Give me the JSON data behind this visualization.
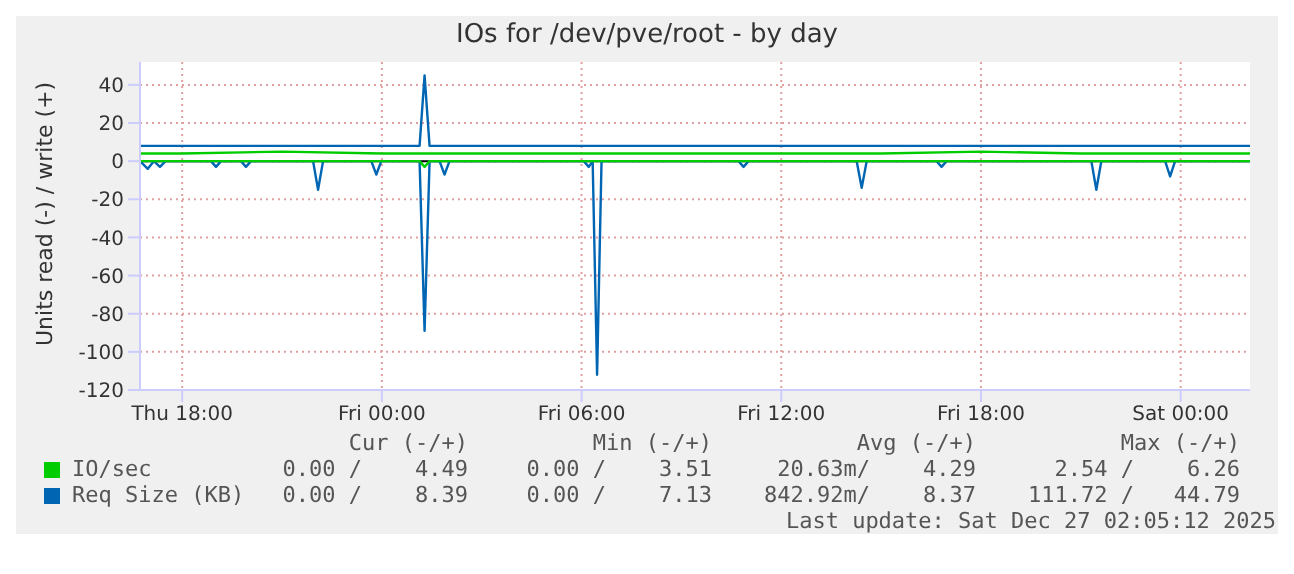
{
  "chart_data": {
    "type": "line",
    "title": "IOs for /dev/pve/root - by day",
    "ylabel": "Units read (-) / write (+)",
    "xlim": [
      "2025-12-25T16:44",
      "2025-12-27T02:05"
    ],
    "xticks": [
      {
        "value": "2025-12-25T18:00",
        "label": "Thu 18:00"
      },
      {
        "value": "2025-12-26T00:00",
        "label": "Fri 00:00"
      },
      {
        "value": "2025-12-26T06:00",
        "label": "Fri 06:00"
      },
      {
        "value": "2025-12-26T12:00",
        "label": "Fri 12:00"
      },
      {
        "value": "2025-12-26T18:00",
        "label": "Fri 18:00"
      },
      {
        "value": "2025-12-27T00:00",
        "label": "Sat 00:00"
      }
    ],
    "ylim": [
      -120,
      52
    ],
    "yticks": [
      -120,
      -100,
      -80,
      -60,
      -40,
      -20,
      0,
      20,
      40
    ],
    "grid": true,
    "legend": "bottom left",
    "marker": "none",
    "line_style": "solid",
    "ref_lines": [
      {
        "axis": "y",
        "value": 0,
        "color": "#000000"
      }
    ],
    "series": [
      {
        "color": "#00cc00",
        "x": [
          "2025-12-25T16:44",
          "2025-12-26T01:08",
          "2025-12-26T01:17",
          "2025-12-26T01:26",
          "2025-12-27T02:05"
        ],
        "values": [
          0,
          0,
          -3,
          0,
          0
        ]
      },
      {
        "color": "#0066b3",
        "x": [
          "2025-12-25T16:44",
          "2025-12-25T16:58",
          "2025-12-25T17:09",
          "2025-12-25T17:20",
          "2025-12-25T17:30",
          "2025-12-25T18:52",
          "2025-12-25T19:01",
          "2025-12-25T19:10",
          "2025-12-25T19:46",
          "2025-12-25T19:55",
          "2025-12-25T20:04",
          "2025-12-25T21:56",
          "2025-12-25T22:05",
          "2025-12-25T22:14",
          "2025-12-25T23:41",
          "2025-12-25T23:50",
          "2025-12-25T23:59",
          "2025-12-26T01:08",
          "2025-12-26T01:17",
          "2025-12-26T01:26",
          "2025-12-26T01:44",
          "2025-12-26T01:53",
          "2025-12-26T02:02",
          "2025-12-26T06:04",
          "2025-12-26T06:13",
          "2025-12-26T06:20",
          "2025-12-26T06:28",
          "2025-12-26T06:36",
          "2025-12-26T10:43",
          "2025-12-26T10:52",
          "2025-12-26T11:01",
          "2025-12-26T14:16",
          "2025-12-26T14:25",
          "2025-12-26T14:34",
          "2025-12-26T16:40",
          "2025-12-26T16:49",
          "2025-12-26T16:58",
          "2025-12-26T21:19",
          "2025-12-26T21:28",
          "2025-12-26T21:37",
          "2025-12-26T23:32",
          "2025-12-26T23:41",
          "2025-12-26T23:50",
          "2025-12-27T02:05"
        ],
        "values": [
          0,
          -4,
          0,
          -3,
          0,
          0,
          -3,
          0,
          0,
          -3,
          0,
          0,
          -15,
          0,
          0,
          -7,
          0,
          0,
          -89,
          0,
          0,
          -7,
          0,
          0,
          -3,
          0,
          -112,
          0,
          0,
          -3,
          0,
          0,
          -14,
          0,
          0,
          -3,
          0,
          0,
          -15,
          0,
          0,
          -8,
          0,
          0
        ]
      },
      {
        "name": "IO/sec",
        "color": "#00cc00",
        "x": [
          "2025-12-25T16:44",
          "2025-12-25T18:00",
          "2025-12-25T21:00",
          "2025-12-26T00:00",
          "2025-12-26T03:00",
          "2025-12-26T06:00",
          "2025-12-26T09:00",
          "2025-12-26T12:00",
          "2025-12-26T15:00",
          "2025-12-26T18:00",
          "2025-12-26T21:00",
          "2025-12-27T00:00",
          "2025-12-27T02:05"
        ],
        "values": [
          4,
          4,
          5,
          4,
          4,
          4,
          4,
          4,
          4,
          5,
          4,
          4,
          4
        ]
      },
      {
        "name": "Req Size (KB)",
        "color": "#0066b3",
        "x": [
          "2025-12-25T16:44",
          "2025-12-25T18:00",
          "2025-12-25T21:00",
          "2025-12-26T00:00",
          "2025-12-26T01:08",
          "2025-12-26T01:17",
          "2025-12-26T01:26",
          "2025-12-26T03:00",
          "2025-12-26T06:00",
          "2025-12-26T09:00",
          "2025-12-26T12:00",
          "2025-12-26T15:00",
          "2025-12-26T18:00",
          "2025-12-26T21:00",
          "2025-12-27T00:00",
          "2025-12-27T02:05"
        ],
        "values": [
          8,
          8,
          8,
          8,
          8,
          45,
          8,
          8,
          8,
          8,
          8,
          8,
          8,
          8,
          8,
          8
        ]
      }
    ],
    "annotations": [
      "Cur (-/+)",
      "Min (-/+)",
      "Avg (-/+)",
      "Max (-/+)",
      "0.00 /    4.49",
      "0.00 /    3.51",
      "20.63m/    4.29",
      "2.54 /    6.26",
      "0.00 /    8.39",
      "0.00 /    7.13",
      "842.92m/    8.37",
      "111.72 /   44.79",
      "Last update: Sat Dec 27 02:05:12 2025"
    ]
  }
}
